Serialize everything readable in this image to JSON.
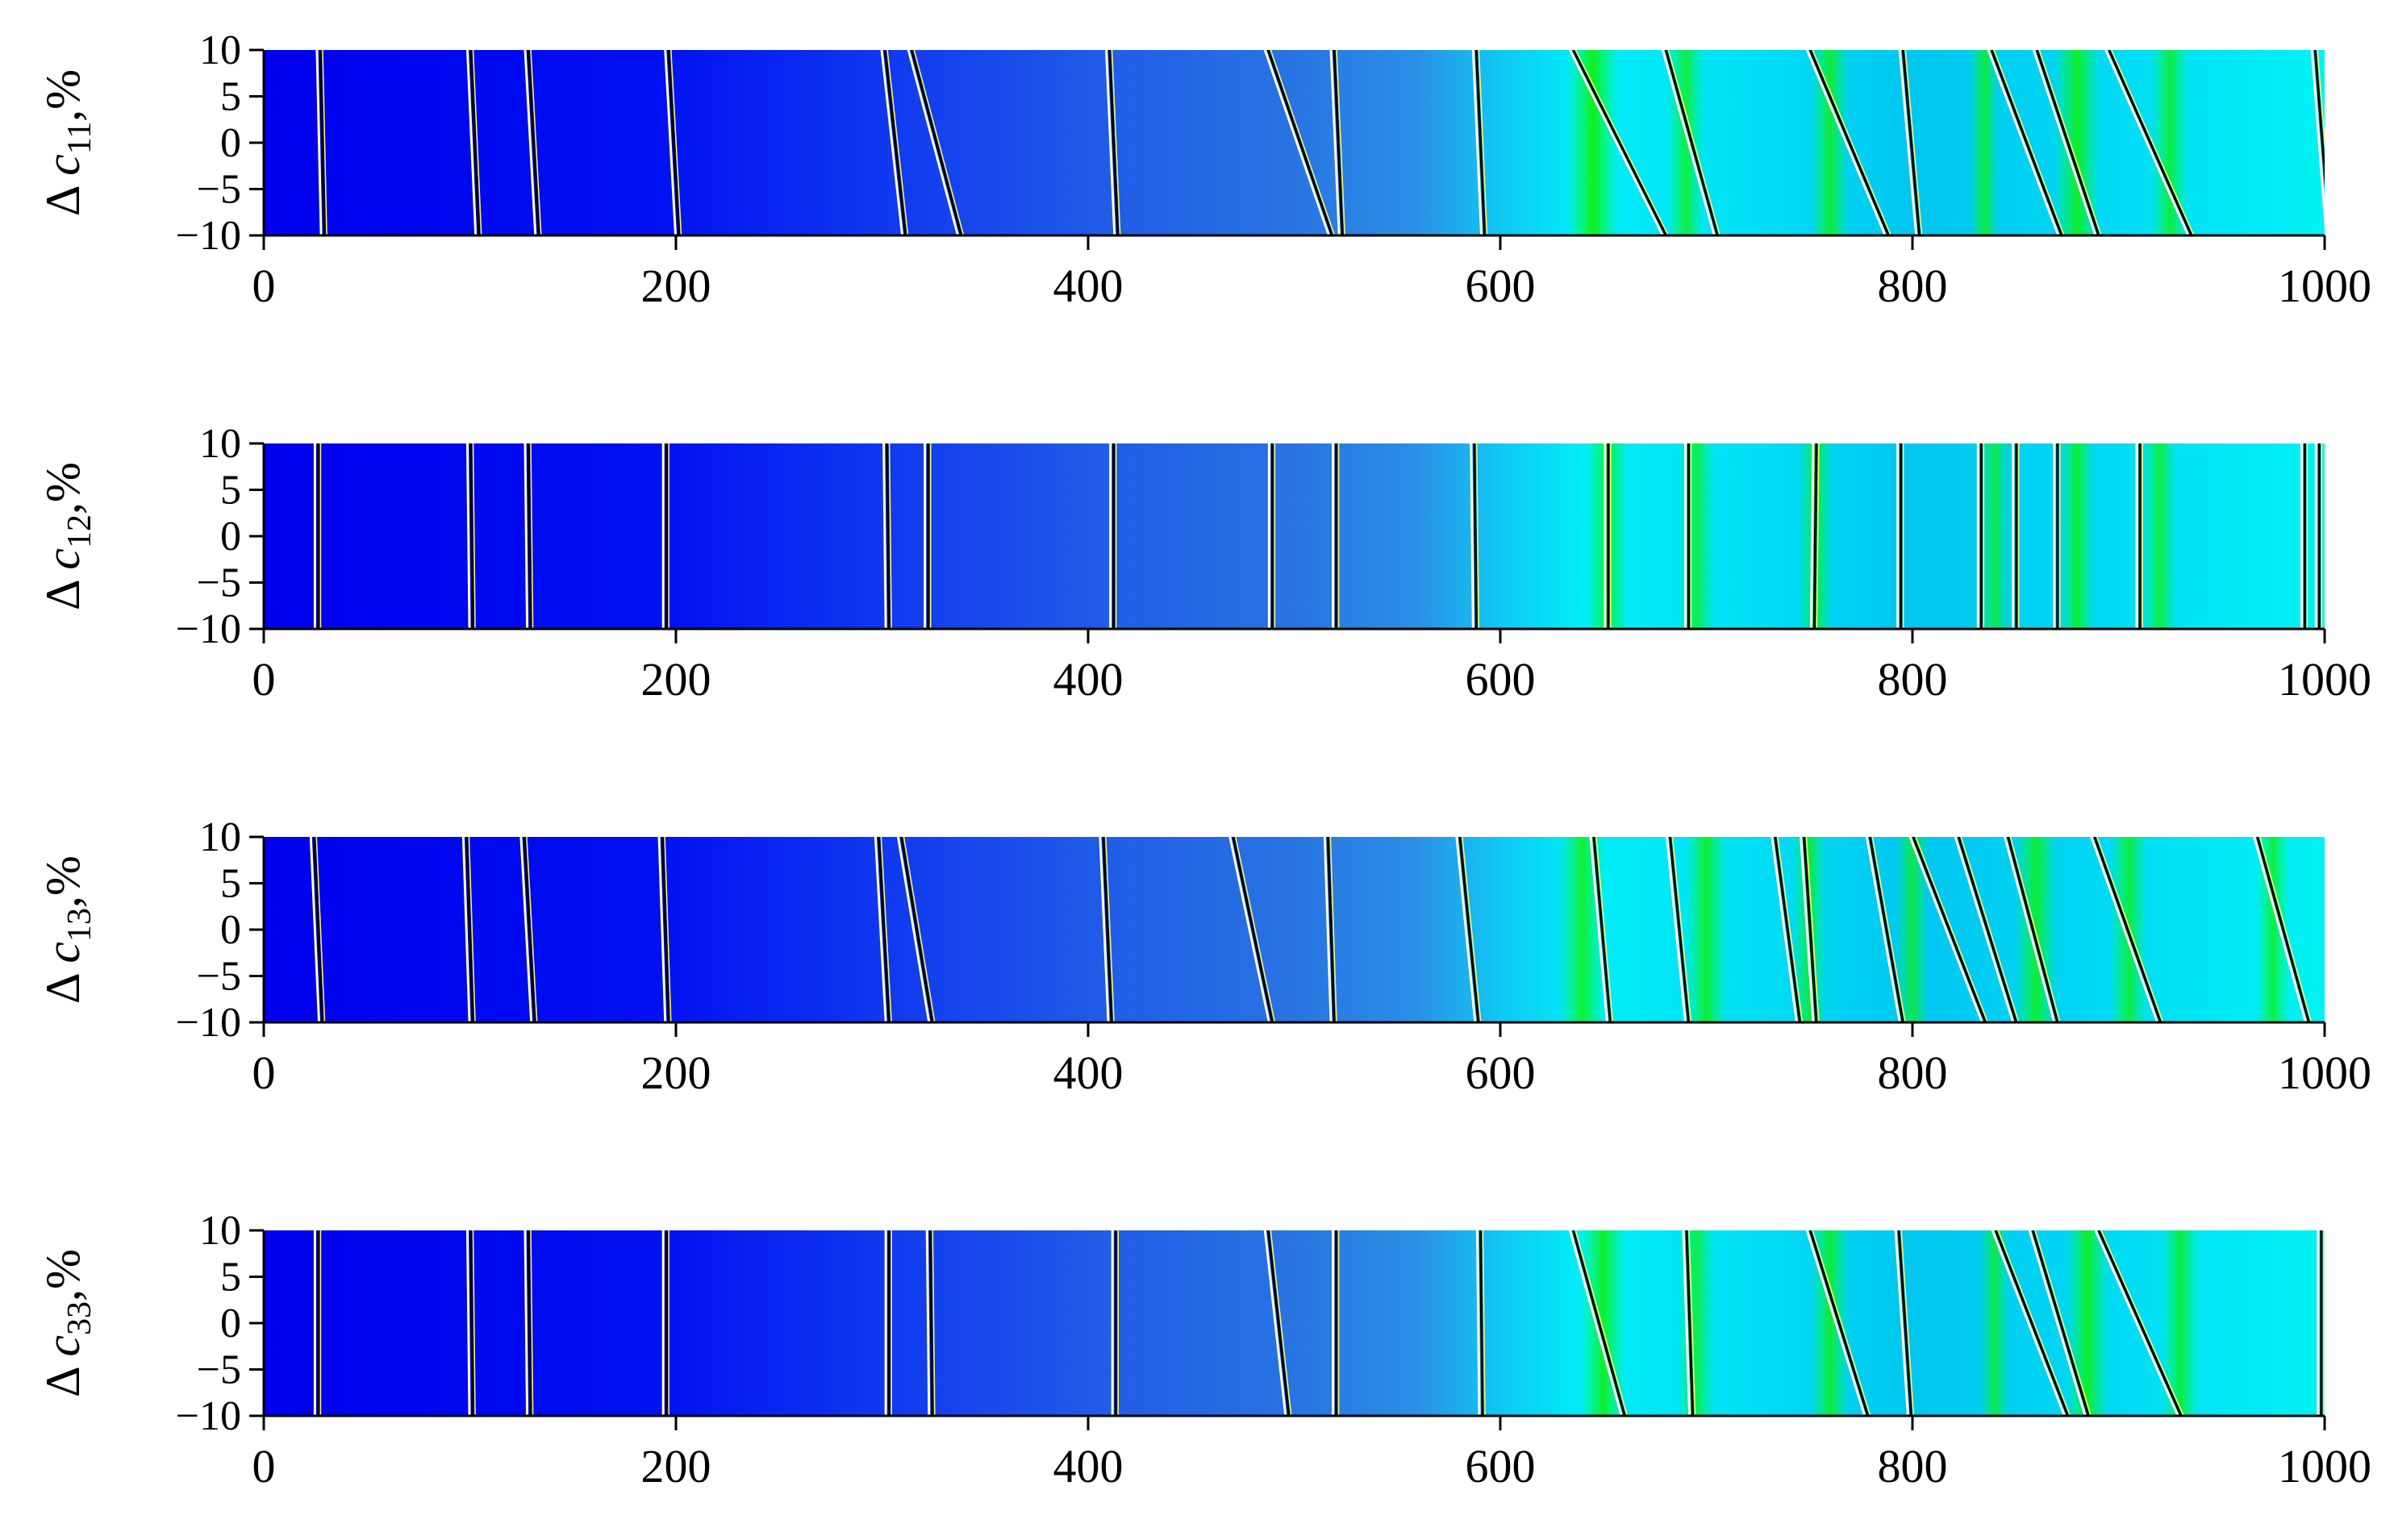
{
  "chart_data": [
    {
      "type": "heatmap",
      "ylabel_symbol": "Δ",
      "ylabel_var": "c",
      "ylabel_sub": "11",
      "ylabel_suffix": ",%",
      "x_ticks": [
        0,
        200,
        400,
        600,
        800,
        1000
      ],
      "y_ticks": [
        10,
        5,
        0,
        -5,
        -10
      ],
      "xlim": [
        0,
        1000
      ],
      "ylim": [
        -10,
        10
      ],
      "resonance_lines": [
        [
          27,
          29
        ],
        [
          100,
          104
        ],
        [
          128,
          133
        ],
        [
          196,
          201
        ],
        [
          301,
          311
        ],
        [
          314,
          338
        ],
        [
          410,
          414
        ],
        [
          487,
          518
        ],
        [
          519,
          523
        ],
        [
          588,
          592
        ],
        [
          635,
          680
        ],
        [
          680,
          705
        ],
        [
          750,
          788
        ],
        [
          795,
          803
        ],
        [
          838,
          872
        ],
        [
          860,
          890
        ],
        [
          895,
          935
        ],
        [
          995,
          1002
        ]
      ],
      "green_bands": [
        [
          645,
          25,
          0.95
        ],
        [
          690,
          18,
          0.8
        ],
        [
          760,
          18,
          0.85
        ],
        [
          835,
          14,
          0.8
        ],
        [
          880,
          22,
          0.9
        ],
        [
          925,
          18,
          0.8
        ]
      ]
    },
    {
      "type": "heatmap",
      "ylabel_symbol": "Δ",
      "ylabel_var": "c",
      "ylabel_sub": "12",
      "ylabel_suffix": ",%",
      "x_ticks": [
        0,
        200,
        400,
        600,
        800,
        1000
      ],
      "y_ticks": [
        10,
        5,
        0,
        -5,
        -10
      ],
      "xlim": [
        0,
        1000
      ],
      "ylim": [
        -10,
        10
      ],
      "resonance_lines": [
        [
          26,
          26
        ],
        [
          100,
          101
        ],
        [
          128,
          129
        ],
        [
          195,
          195
        ],
        [
          302,
          303
        ],
        [
          322,
          322
        ],
        [
          412,
          412
        ],
        [
          489,
          489
        ],
        [
          520,
          520
        ],
        [
          587,
          588
        ],
        [
          652,
          652
        ],
        [
          691,
          691
        ],
        [
          753,
          752
        ],
        [
          794,
          794
        ],
        [
          833,
          833
        ],
        [
          850,
          850
        ],
        [
          870,
          870
        ],
        [
          910,
          910
        ],
        [
          990,
          990
        ],
        [
          997,
          997
        ]
      ],
      "green_bands": [
        [
          652,
          20,
          0.85
        ],
        [
          695,
          18,
          0.75
        ],
        [
          753,
          16,
          0.8
        ],
        [
          840,
          14,
          0.75
        ],
        [
          880,
          16,
          0.85
        ],
        [
          920,
          16,
          0.8
        ]
      ]
    },
    {
      "type": "heatmap",
      "ylabel_symbol": "Δ",
      "ylabel_var": "c",
      "ylabel_sub": "13",
      "ylabel_suffix": ",%",
      "x_ticks": [
        0,
        200,
        400,
        600,
        800,
        1000
      ],
      "y_ticks": [
        10,
        5,
        0,
        -5,
        -10
      ],
      "xlim": [
        0,
        1000
      ],
      "ylim": [
        -10,
        10
      ],
      "resonance_lines": [
        [
          24,
          28
        ],
        [
          98,
          101
        ],
        [
          126,
          131
        ],
        [
          193,
          196
        ],
        [
          298,
          303
        ],
        [
          309,
          324
        ],
        [
          407,
          411
        ],
        [
          470,
          489
        ],
        [
          516,
          519
        ],
        [
          580,
          589
        ],
        [
          645,
          653
        ],
        [
          682,
          691
        ],
        [
          733,
          745
        ],
        [
          747,
          753
        ],
        [
          779,
          795
        ],
        [
          800,
          835
        ],
        [
          822,
          850
        ],
        [
          846,
          870
        ],
        [
          888,
          920
        ],
        [
          967,
          992
        ]
      ],
      "green_bands": [
        [
          640,
          22,
          0.85
        ],
        [
          700,
          20,
          0.85
        ],
        [
          750,
          16,
          0.8
        ],
        [
          800,
          16,
          0.75
        ],
        [
          860,
          20,
          0.85
        ],
        [
          905,
          18,
          0.8
        ],
        [
          975,
          16,
          0.8
        ]
      ]
    },
    {
      "type": "heatmap",
      "ylabel_symbol": "Δ",
      "ylabel_var": "c",
      "ylabel_sub": "33",
      "ylabel_suffix": ",%",
      "x_ticks": [
        0,
        200,
        400,
        600,
        800,
        1000
      ],
      "y_ticks": [
        10,
        5,
        0,
        -5,
        -10
      ],
      "xlim": [
        0,
        1000
      ],
      "ylim": [
        -10,
        10
      ],
      "resonance_lines": [
        [
          26,
          26
        ],
        [
          100,
          101
        ],
        [
          128,
          129
        ],
        [
          195,
          195
        ],
        [
          303,
          303
        ],
        [
          323,
          324
        ],
        [
          413,
          413
        ],
        [
          487,
          497
        ],
        [
          520,
          520
        ],
        [
          590,
          591
        ],
        [
          635,
          660
        ],
        [
          690,
          693
        ],
        [
          750,
          778
        ],
        [
          793,
          799
        ],
        [
          840,
          875
        ],
        [
          858,
          885
        ],
        [
          890,
          930
        ],
        [
          998,
          998
        ]
      ],
      "green_bands": [
        [
          650,
          22,
          0.9
        ],
        [
          695,
          18,
          0.75
        ],
        [
          760,
          18,
          0.85
        ],
        [
          840,
          14,
          0.75
        ],
        [
          885,
          20,
          0.9
        ],
        [
          930,
          18,
          0.8
        ]
      ]
    }
  ]
}
